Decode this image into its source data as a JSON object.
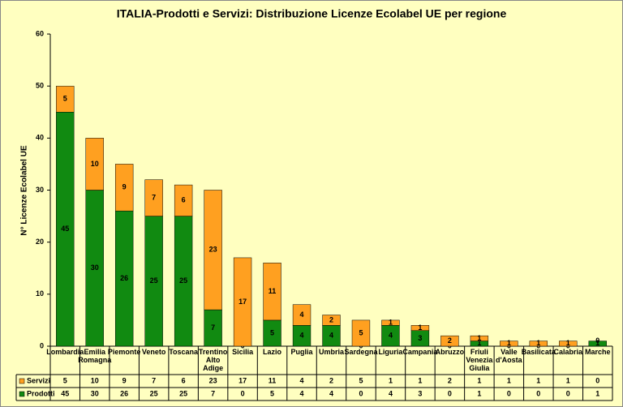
{
  "chart_data": {
    "type": "stacked-bar",
    "title": "ITALIA-Prodotti e Servizi: Distribuzione  Licenze Ecolabel UE  per regione",
    "y_label": "N° Licenze Ecolabel UE",
    "categories": [
      "Lombardia",
      "Emilia Romagna",
      "Piemonte",
      "Veneto",
      "Toscana",
      "Trentino Alto Adige",
      "Sicilia",
      "Lazio",
      "Puglia",
      "Umbria",
      "Sardegna",
      "Liguria",
      "Campania",
      "Abruzzo",
      "Friuli Venezia Giulia",
      "Valle d'Aosta",
      "Basilicata",
      "Calabria",
      "Marche"
    ],
    "series": [
      {
        "name": "Servizi",
        "color": "#ffa020",
        "values": [
          5,
          10,
          9,
          7,
          6,
          23,
          17,
          11,
          4,
          2,
          5,
          1,
          1,
          2,
          1,
          1,
          1,
          1,
          0
        ]
      },
      {
        "name": "Prodotti",
        "color": "#118a11",
        "values": [
          45,
          30,
          26,
          25,
          25,
          7,
          0,
          5,
          4,
          4,
          0,
          4,
          3,
          0,
          1,
          0,
          0,
          0,
          1
        ]
      }
    ],
    "ylim": [
      0,
      60
    ],
    "yticks": [
      0,
      10,
      20,
      30,
      40,
      50,
      60
    ],
    "grid": false
  }
}
